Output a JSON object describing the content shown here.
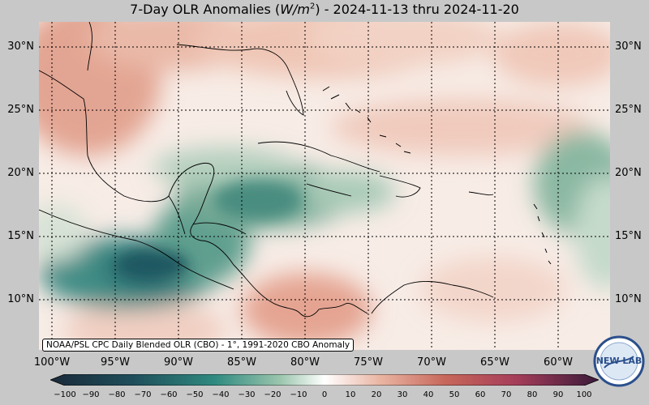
{
  "title": {
    "prefix": "7-Day OLR Anomalies (",
    "unit_base": "W/m",
    "unit_exp": "2",
    "suffix": ") - 2024-11-13 thru 2024-11-20"
  },
  "source_note": "NOAA/PSL CPC Daily Blended OLR (CBO) - 1°, 1991-2020 CBO Anomaly",
  "latitude_labels": [
    "30°N",
    "25°N",
    "20°N",
    "15°N",
    "10°N"
  ],
  "longitude_labels": [
    "100°W",
    "95°W",
    "90°W",
    "85°W",
    "80°W",
    "75°W",
    "70°W",
    "65°W",
    "60°W"
  ],
  "colorbar": {
    "ticks": [
      "−100",
      "−90",
      "−80",
      "−70",
      "−60",
      "−50",
      "−40",
      "−30",
      "−20",
      "−10",
      "0",
      "10",
      "20",
      "30",
      "40",
      "50",
      "60",
      "70",
      "80",
      "90",
      "100"
    ],
    "negative_color": "#1f4e5a",
    "neutral_color": "#ffffff",
    "positive_color": "#b7564a",
    "extreme_positive_color": "#5a1f4a"
  },
  "logo": {
    "text": "NEW LAB"
  }
}
